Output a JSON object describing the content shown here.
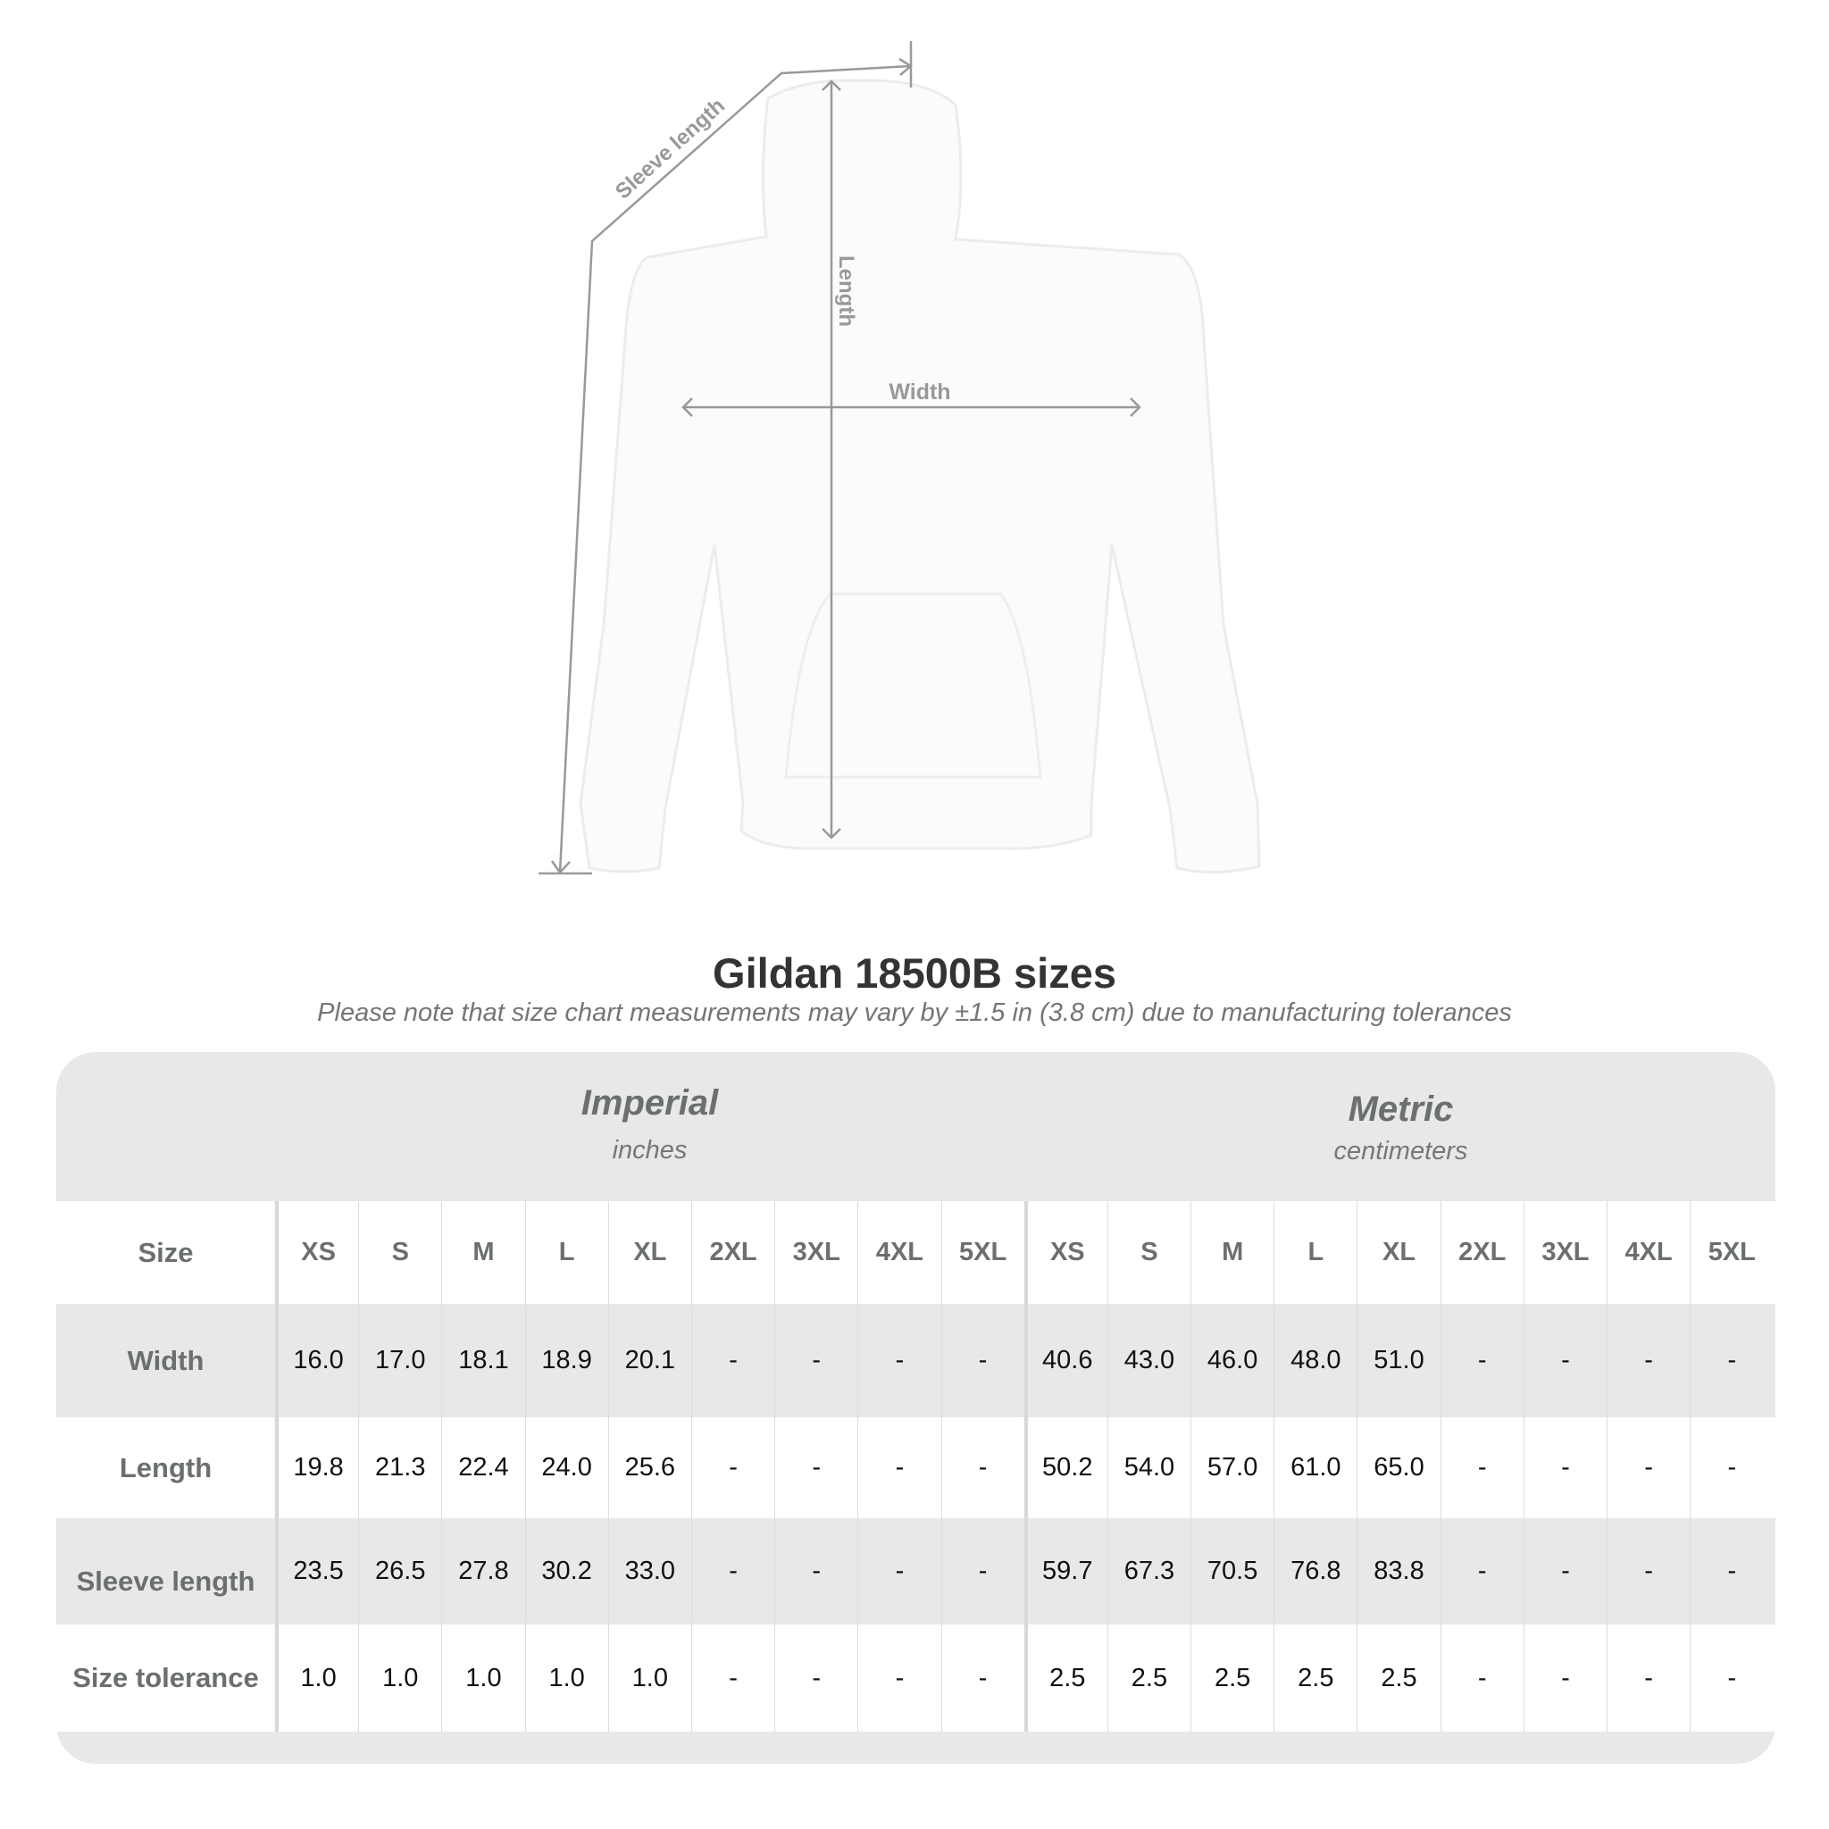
{
  "diagram": {
    "labels": {
      "sleeve": "Sleeve length",
      "length": "Length",
      "width": "Width"
    },
    "line_color": "#999999"
  },
  "header": {
    "title": "Gildan 18500B sizes",
    "note": "Please note that size chart measurements may vary by ±1.5 in (3.8 cm) due to manufacturing tolerances"
  },
  "table": {
    "imperial": {
      "title": "Imperial",
      "unit": "inches"
    },
    "metric": {
      "title": "Metric",
      "unit": "centimeters"
    },
    "size_label": "Size",
    "sizes": [
      "XS",
      "S",
      "M",
      "L",
      "XL",
      "2XL",
      "3XL",
      "4XL",
      "5XL"
    ],
    "rows": [
      {
        "label": "Width",
        "imperial": [
          "16.0",
          "17.0",
          "18.1",
          "18.9",
          "20.1",
          "-",
          "-",
          "-",
          "-"
        ],
        "metric": [
          "40.6",
          "43.0",
          "46.0",
          "48.0",
          "51.0",
          "-",
          "-",
          "-",
          "-"
        ]
      },
      {
        "label": "Length",
        "imperial": [
          "19.8",
          "21.3",
          "22.4",
          "24.0",
          "25.6",
          "-",
          "-",
          "-",
          "-"
        ],
        "metric": [
          "50.2",
          "54.0",
          "57.0",
          "61.0",
          "65.0",
          "-",
          "-",
          "-",
          "-"
        ]
      },
      {
        "label": "Sleeve length",
        "imperial": [
          "23.5",
          "26.5",
          "27.8",
          "30.2",
          "33.0",
          "-",
          "-",
          "-",
          "-"
        ],
        "metric": [
          "59.7",
          "67.3",
          "70.5",
          "76.8",
          "83.8",
          "-",
          "-",
          "-",
          "-"
        ]
      },
      {
        "label": "Size tolerance",
        "imperial": [
          "1.0",
          "1.0",
          "1.0",
          "1.0",
          "1.0",
          "-",
          "-",
          "-",
          "-"
        ],
        "metric": [
          "2.5",
          "2.5",
          "2.5",
          "2.5",
          "2.5",
          "-",
          "-",
          "-",
          "-"
        ]
      }
    ],
    "colors": {
      "band": "#e8e8e8",
      "header_text": "#6b6f70"
    }
  }
}
